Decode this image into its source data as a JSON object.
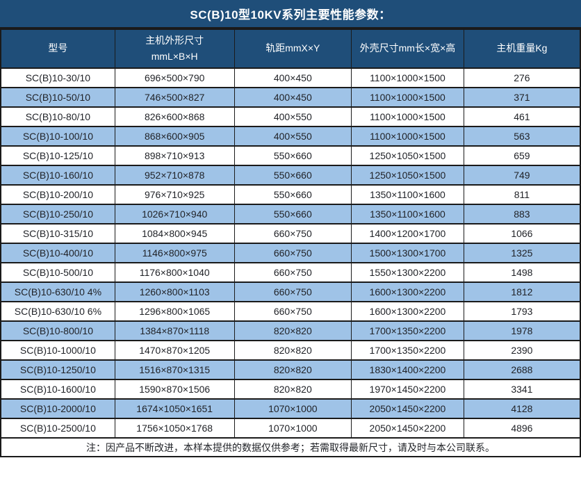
{
  "title": "SC(B)10型10KV系列主要性能参数：",
  "table": {
    "headers": [
      "型号",
      "主机外形尺寸\nmmL×B×H",
      "轨距mmX×Y",
      "外壳尺寸mm长×宽×高",
      "主机重量Kg"
    ],
    "rows": [
      [
        "SC(B)10-30/10",
        "696×500×790",
        "400×450",
        "1100×1000×1500",
        "276"
      ],
      [
        "SC(B)10-50/10",
        "746×500×827",
        "400×450",
        "1100×1000×1500",
        "371"
      ],
      [
        "SC(B)10-80/10",
        "826×600×868",
        "400×550",
        "1100×1000×1500",
        "461"
      ],
      [
        "SC(B)10-100/10",
        "868×600×905",
        "400×550",
        "1100×1000×1500",
        "563"
      ],
      [
        "SC(B)10-125/10",
        "898×710×913",
        "550×660",
        "1250×1050×1500",
        "659"
      ],
      [
        "SC(B)10-160/10",
        "952×710×878",
        "550×660",
        "1250×1050×1500",
        "749"
      ],
      [
        "SC(B)10-200/10",
        "976×710×925",
        "550×660",
        "1350×1100×1600",
        "811"
      ],
      [
        "SC(B)10-250/10",
        "1026×710×940",
        "550×660",
        "1350×1100×1600",
        "883"
      ],
      [
        "SC(B)10-315/10",
        "1084×800×945",
        "660×750",
        "1400×1200×1700",
        "1066"
      ],
      [
        "SC(B)10-400/10",
        "1146×800×975",
        "660×750",
        "1500×1300×1700",
        "1325"
      ],
      [
        "SC(B)10-500/10",
        "1176×800×1040",
        "660×750",
        "1550×1300×2200",
        "1498"
      ],
      [
        "SC(B)10-630/10 4%",
        "1260×800×1103",
        "660×750",
        "1600×1300×2200",
        "1812"
      ],
      [
        "SC(B)10-630/10 6%",
        "1296×800×1065",
        "660×750",
        "1600×1300×2200",
        "1793"
      ],
      [
        "SC(B)10-800/10",
        "1384×870×1118",
        "820×820",
        "1700×1350×2200",
        "1978"
      ],
      [
        "SC(B)10-1000/10",
        "1470×870×1205",
        "820×820",
        "1700×1350×2200",
        "2390"
      ],
      [
        "SC(B)10-1250/10",
        "1516×870×1315",
        "820×820",
        "1830×1400×2200",
        "2688"
      ],
      [
        "SC(B)10-1600/10",
        "1590×870×1506",
        "820×820",
        "1970×1450×2200",
        "3341"
      ],
      [
        "SC(B)10-2000/10",
        "1674×1050×1651",
        "1070×1000",
        "2050×1450×2200",
        "4128"
      ],
      [
        "SC(B)10-2500/10",
        "1756×1050×1768",
        "1070×1000",
        "2050×1450×2200",
        "4896"
      ]
    ]
  },
  "note": "注：因产品不断改进，本样本提供的数据仅供参考；若需取得最新尺寸，请及时与本公司联系。",
  "colors": {
    "header_bg": "#1f4e79",
    "alt_row_bg": "#9fc3e7",
    "border": "#1a1a1a",
    "header_text": "#ffffff",
    "body_text": "#1f2126"
  }
}
